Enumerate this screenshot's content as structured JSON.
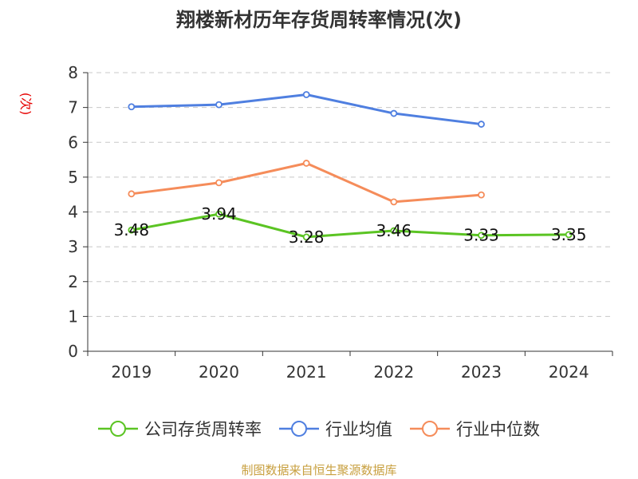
{
  "chart_data": {
    "type": "line",
    "title": "翔楼新材历年存货周转率情况(次)",
    "unit_label": "(次)",
    "categories": [
      "2019",
      "2020",
      "2021",
      "2022",
      "2023",
      "2024"
    ],
    "ylim": [
      0,
      8
    ],
    "yticks": [
      "0",
      "1",
      "2",
      "3",
      "4",
      "5",
      "6",
      "7",
      "8"
    ],
    "grid": true,
    "legend_position": "bottom",
    "series": [
      {
        "name": "公司存货周转率",
        "color": "#5bc423",
        "values": [
          3.48,
          3.94,
          3.28,
          3.46,
          3.33,
          3.35
        ],
        "labels": [
          "3.48",
          "3.94",
          "3.28",
          "3.46",
          "3.33",
          "3.35"
        ]
      },
      {
        "name": "行业均值",
        "color": "#4f7fe0",
        "values": [
          7.02,
          7.08,
          7.37,
          6.83,
          6.52,
          null
        ]
      },
      {
        "name": "行业中位数",
        "color": "#f58c5a",
        "values": [
          4.52,
          4.84,
          5.4,
          4.29,
          4.49,
          null
        ]
      }
    ]
  },
  "source": "制图数据来自恒生聚源数据库"
}
